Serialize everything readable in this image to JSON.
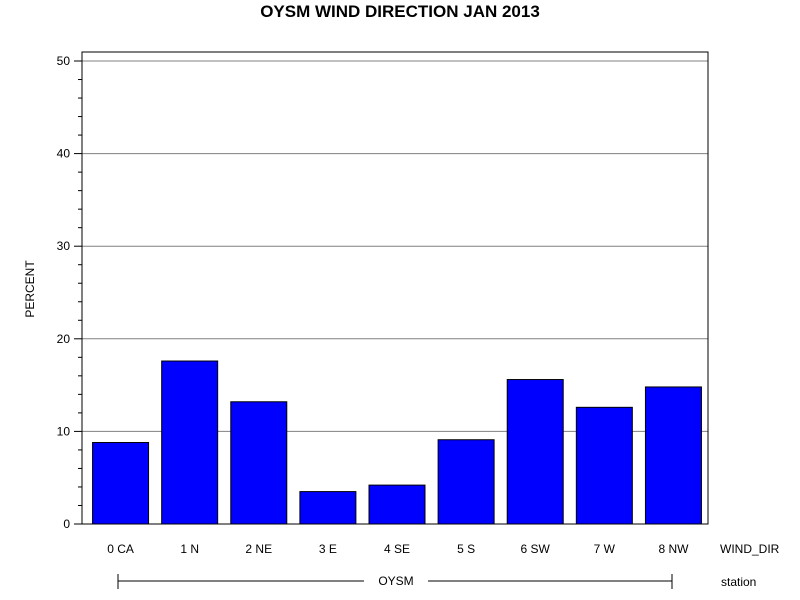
{
  "chart_data": {
    "type": "bar",
    "title": "OYSM WIND DIRECTION JAN 2013",
    "xlabel": "WIND_DIR",
    "ylabel": "PERCENT",
    "group_axis_label": "station",
    "group": "OYSM",
    "categories": [
      "0 CA",
      "1 N",
      "2 NE",
      "3 E",
      "4 SE",
      "5 S",
      "6 SW",
      "7 W",
      "8 NW"
    ],
    "values": [
      8.8,
      17.6,
      13.2,
      3.5,
      4.2,
      9.1,
      15.6,
      12.6,
      14.8
    ],
    "ylim": [
      0,
      50
    ],
    "yticks": [
      "0",
      "10",
      "20",
      "30",
      "40",
      "50"
    ],
    "grid": true,
    "bar_color": "#0000ff"
  }
}
